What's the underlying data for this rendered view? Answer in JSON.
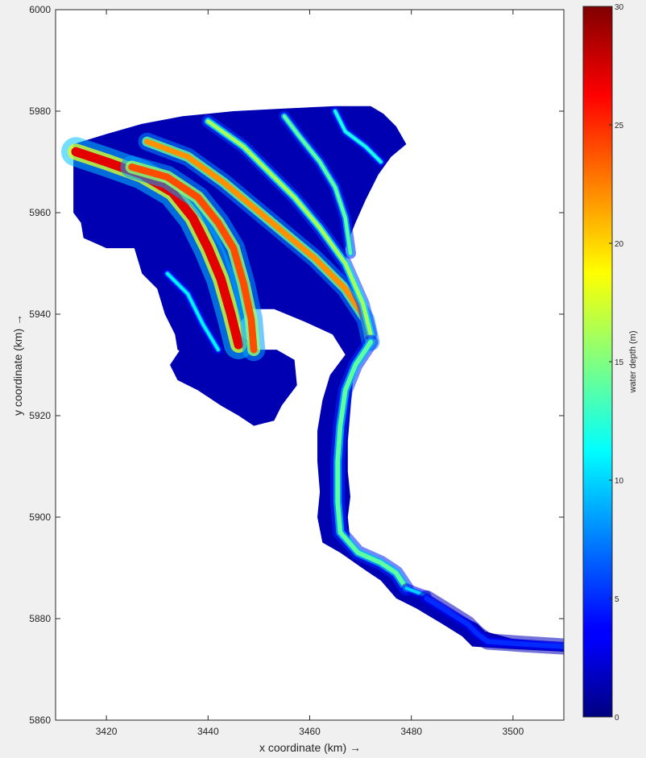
{
  "chart_data": {
    "type": "heatmap",
    "title": "",
    "xlabel": "x coordinate (km) →",
    "ylabel": "y coordinate (km) →",
    "xlim": [
      3410,
      3510
    ],
    "ylim": [
      5860,
      6000
    ],
    "xticks": [
      "3420",
      "3440",
      "3460",
      "3480",
      "3500"
    ],
    "yticks": [
      "5860",
      "5880",
      "5900",
      "5920",
      "5940",
      "5960",
      "5980",
      "6000"
    ],
    "colorbar": {
      "label": "water depth (m)",
      "range": [
        0,
        30
      ],
      "ticks": [
        "0",
        "5",
        "10",
        "15",
        "20",
        "25",
        "30"
      ],
      "colormap": "jet"
    },
    "domain_outline": [
      [
        3413.5,
        5973.5
      ],
      [
        3420,
        5975.5
      ],
      [
        3427,
        5977.5
      ],
      [
        3435,
        5979
      ],
      [
        3445,
        5980
      ],
      [
        3455,
        5980.5
      ],
      [
        3465,
        5981
      ],
      [
        3472,
        5981
      ],
      [
        3474.5,
        5979.5
      ],
      [
        3477,
        5977
      ],
      [
        3479,
        5973.5
      ],
      [
        3476,
        5971
      ],
      [
        3473.5,
        5967.5
      ],
      [
        3471,
        5962.5
      ],
      [
        3469,
        5958
      ],
      [
        3467,
        5953
      ],
      [
        3467.5,
        5948
      ],
      [
        3469.5,
        5943
      ],
      [
        3471.5,
        5937.5
      ],
      [
        3472.5,
        5934.5
      ],
      [
        3470,
        5932
      ],
      [
        3468.5,
        5927
      ],
      [
        3468,
        5921
      ],
      [
        3467.5,
        5915
      ],
      [
        3467.5,
        5909
      ],
      [
        3468,
        5904
      ],
      [
        3467.5,
        5900
      ],
      [
        3468,
        5895
      ],
      [
        3471,
        5892
      ],
      [
        3475,
        5891
      ],
      [
        3478,
        5887.5
      ],
      [
        3481,
        5885.5
      ],
      [
        3485,
        5883
      ],
      [
        3489,
        5881
      ],
      [
        3493,
        5879
      ],
      [
        3494.5,
        5877.5
      ],
      [
        3500,
        5876
      ],
      [
        3510,
        5875
      ],
      [
        3510,
        5873.5
      ],
      [
        3500,
        5874
      ],
      [
        3492,
        5874.5
      ],
      [
        3490,
        5876.5
      ],
      [
        3486,
        5879
      ],
      [
        3481,
        5882
      ],
      [
        3477,
        5884
      ],
      [
        3474,
        5887.5
      ],
      [
        3471,
        5889.5
      ],
      [
        3466,
        5893
      ],
      [
        3462.5,
        5895
      ],
      [
        3461.5,
        5900
      ],
      [
        3462,
        5905
      ],
      [
        3461.5,
        5911
      ],
      [
        3461.5,
        5917
      ],
      [
        3462.5,
        5923
      ],
      [
        3464,
        5928
      ],
      [
        3467,
        5932
      ],
      [
        3464.5,
        5936
      ],
      [
        3459,
        5938.5
      ],
      [
        3453,
        5941
      ],
      [
        3448.5,
        5941
      ],
      [
        3446,
        5938
      ],
      [
        3446,
        5933
      ],
      [
        3448,
        5930
      ],
      [
        3447,
        5927
      ],
      [
        3443.5,
        5926
      ],
      [
        3441,
        5927.5
      ],
      [
        3437,
        5931
      ],
      [
        3434,
        5933
      ],
      [
        3433.5,
        5936
      ],
      [
        3431.5,
        5940
      ],
      [
        3430,
        5945
      ],
      [
        3427,
        5948
      ],
      [
        3425.5,
        5953
      ],
      [
        3420,
        5953
      ],
      [
        3415.5,
        5955
      ],
      [
        3415,
        5958
      ],
      [
        3413.5,
        5960
      ],
      [
        3413.5,
        5967
      ]
    ],
    "bay_outline": [
      [
        3443.5,
        5934
      ],
      [
        3447,
        5935.5
      ],
      [
        3449.5,
        5933
      ],
      [
        3453.5,
        5933
      ],
      [
        3457,
        5931
      ],
      [
        3457.5,
        5926
      ],
      [
        3454.5,
        5922
      ],
      [
        3453,
        5919
      ],
      [
        3449,
        5918
      ],
      [
        3446,
        5920
      ],
      [
        3442.5,
        5922
      ],
      [
        3438,
        5925
      ],
      [
        3434,
        5927
      ],
      [
        3432.5,
        5930
      ],
      [
        3434.5,
        5933
      ],
      [
        3438.5,
        5933.5
      ]
    ],
    "channels": [
      {
        "depth": 27,
        "width": 1.8,
        "points": [
          [
            3414,
            5972
          ],
          [
            3420,
            5970
          ],
          [
            3427,
            5967.5
          ],
          [
            3433,
            5964
          ],
          [
            3437,
            5959
          ],
          [
            3440,
            5953
          ],
          [
            3442.5,
            5947
          ],
          [
            3444.5,
            5940
          ],
          [
            3446,
            5934
          ]
        ]
      },
      {
        "depth": 24,
        "width": 1.4,
        "points": [
          [
            3425,
            5969
          ],
          [
            3432,
            5967
          ],
          [
            3438,
            5963
          ],
          [
            3442,
            5958
          ],
          [
            3445,
            5953
          ],
          [
            3447,
            5946
          ],
          [
            3448.5,
            5939
          ],
          [
            3449,
            5933
          ]
        ]
      },
      {
        "depth": 22,
        "width": 1.1,
        "points": [
          [
            3428,
            5974
          ],
          [
            3436,
            5971
          ],
          [
            3443,
            5966
          ],
          [
            3449,
            5961
          ],
          [
            3455,
            5956
          ],
          [
            3461,
            5951
          ],
          [
            3467,
            5945
          ],
          [
            3471,
            5939
          ],
          [
            3472,
            5934.5
          ]
        ]
      },
      {
        "depth": 16,
        "width": 0.8,
        "points": [
          [
            3440,
            5978
          ],
          [
            3447,
            5973
          ],
          [
            3452,
            5968
          ],
          [
            3457,
            5963
          ],
          [
            3462,
            5957
          ],
          [
            3467,
            5950
          ],
          [
            3470.5,
            5942
          ],
          [
            3472,
            5936
          ]
        ]
      },
      {
        "depth": 14,
        "width": 0.7,
        "points": [
          [
            3455,
            5979
          ],
          [
            3458,
            5975
          ],
          [
            3462,
            5970
          ],
          [
            3465,
            5965
          ],
          [
            3467,
            5959
          ],
          [
            3468,
            5952
          ]
        ]
      },
      {
        "depth": 12,
        "width": 0.6,
        "points": [
          [
            3465,
            5980
          ],
          [
            3467,
            5976
          ],
          [
            3471,
            5973
          ],
          [
            3474,
            5970
          ]
        ]
      },
      {
        "depth": 14,
        "width": 0.9,
        "points": [
          [
            3472,
            5934.5
          ],
          [
            3469,
            5930
          ],
          [
            3467,
            5925
          ],
          [
            3466,
            5918
          ],
          [
            3465.5,
            5911
          ],
          [
            3465.5,
            5903
          ],
          [
            3466,
            5897
          ],
          [
            3469.5,
            5893
          ],
          [
            3474,
            5891
          ],
          [
            3477,
            5889
          ],
          [
            3479,
            5886
          ]
        ]
      },
      {
        "depth": 10,
        "width": 0.6,
        "points": [
          [
            3479,
            5886
          ],
          [
            3483,
            5884.5
          ]
        ]
      },
      {
        "depth": 5,
        "width": 1.0,
        "points": [
          [
            3483,
            5884
          ],
          [
            3487,
            5881.5
          ],
          [
            3491,
            5879
          ],
          [
            3493,
            5877
          ],
          [
            3495,
            5875.5
          ],
          [
            3502,
            5875
          ],
          [
            3510,
            5874.5
          ]
        ]
      },
      {
        "depth": 11,
        "width": 0.6,
        "points": [
          [
            3432,
            5948
          ],
          [
            3436,
            5944
          ],
          [
            3439,
            5938
          ],
          [
            3442,
            5933
          ]
        ]
      }
    ]
  }
}
